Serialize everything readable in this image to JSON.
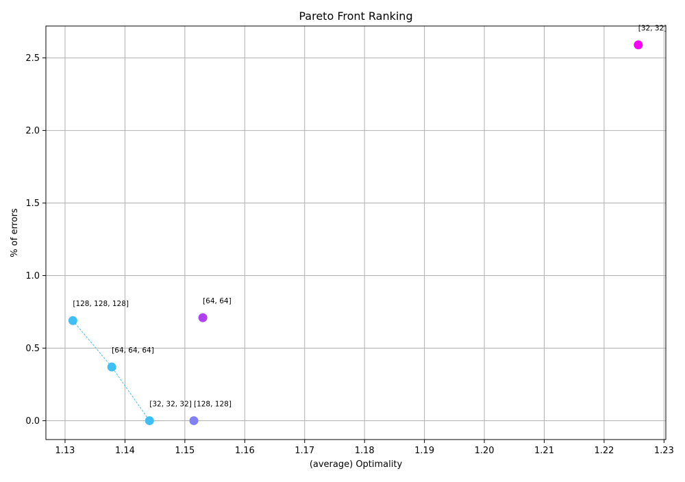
{
  "chart_data": {
    "type": "scatter",
    "title": "Pareto Front Ranking",
    "xlabel": "(average) Optimality",
    "ylabel": "% of errors",
    "xlim": [
      1.1268,
      1.2303
    ],
    "ylim": [
      -0.13,
      2.72
    ],
    "xticks": [
      1.13,
      1.14,
      1.15,
      1.16,
      1.17,
      1.18,
      1.19,
      1.2,
      1.21,
      1.22,
      1.23
    ],
    "xtick_labels": [
      "1.13",
      "1.14",
      "1.15",
      "1.16",
      "1.17",
      "1.18",
      "1.19",
      "1.20",
      "1.21",
      "1.22",
      "1.23"
    ],
    "yticks": [
      0.0,
      0.5,
      1.0,
      1.5,
      2.0,
      2.5
    ],
    "ytick_labels": [
      "0.0",
      "0.5",
      "1.0",
      "1.5",
      "2.0",
      "2.5"
    ],
    "grid": true,
    "points": [
      {
        "label": "[128, 128, 128]",
        "x": 1.1313,
        "y": 0.69,
        "color": "#3fbff5"
      },
      {
        "label": "[64, 64, 64]",
        "x": 1.1378,
        "y": 0.37,
        "color": "#3fbff5"
      },
      {
        "label": "[32, 32, 32]",
        "x": 1.1441,
        "y": 0.0,
        "color": "#3fbff5"
      },
      {
        "label": "[128, 128]",
        "x": 1.1515,
        "y": 0.0,
        "color": "#8080f7"
      },
      {
        "label": "[64, 64]",
        "x": 1.153,
        "y": 0.71,
        "color": "#b040f5"
      },
      {
        "label": "[32, 32]",
        "x": 1.2257,
        "y": 2.59,
        "color": "#f800f8"
      }
    ],
    "front_line": {
      "color": "#3fbff5",
      "point_indices": [
        0,
        1,
        2
      ]
    }
  }
}
